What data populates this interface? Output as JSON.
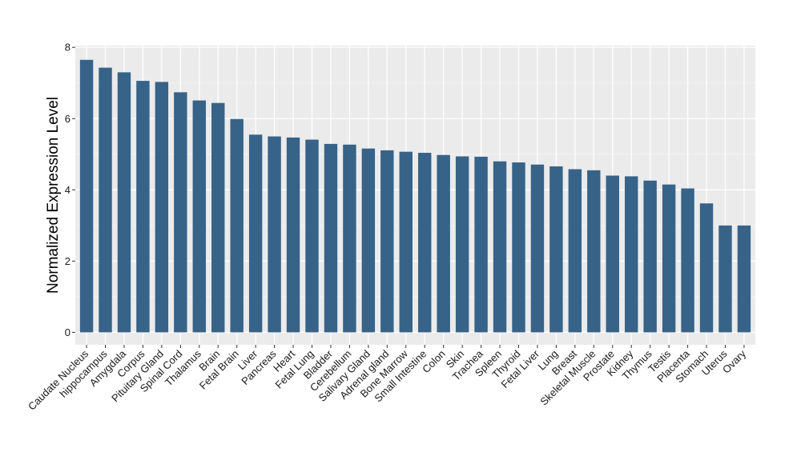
{
  "chart_data": {
    "type": "bar",
    "title": "",
    "xlabel": "",
    "ylabel": "Normalized Expression Level",
    "ylim": [
      -0.35,
      8.05
    ],
    "yticks": [
      0,
      2,
      4,
      6,
      8
    ],
    "grid": true,
    "legend": "none",
    "bar_color": "#376389",
    "panel_color": "#ebebeb",
    "categories": [
      "Caudate Nucleus",
      "hippocampus",
      "Amygdala",
      "Corpus",
      "Pituitary Gland",
      "Spinal Cord",
      "Thalamus",
      "Brain",
      "Fetal Brain",
      "Liver",
      "Pancreas",
      "Heart",
      "Fetal Lung",
      "Bladder",
      "Cerebellum",
      "Salivary Gland",
      "Adrenal gland",
      "Bone Marrow",
      "Small Intestine",
      "Colon",
      "Skin",
      "Trachea",
      "Spleen",
      "Thyroid",
      "Fetal Liver",
      "Lung",
      "Breast",
      "Skeletal Muscle",
      "Prostate",
      "Kidney",
      "Thymus",
      "Testis",
      "Placenta",
      "Stomach",
      "Uterus",
      "Ovary"
    ],
    "values": [
      7.65,
      7.43,
      7.3,
      7.06,
      7.03,
      6.74,
      6.51,
      6.44,
      5.99,
      5.55,
      5.5,
      5.47,
      5.41,
      5.29,
      5.27,
      5.16,
      5.11,
      5.07,
      5.04,
      4.98,
      4.94,
      4.93,
      4.8,
      4.77,
      4.71,
      4.66,
      4.58,
      4.55,
      4.4,
      4.38,
      4.26,
      4.15,
      4.04,
      3.62,
      3.0,
      3.0
    ]
  }
}
